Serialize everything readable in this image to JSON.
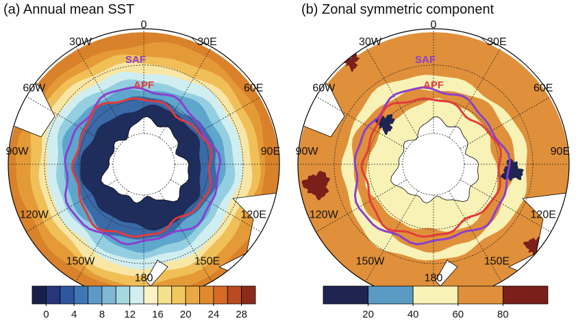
{
  "panels": [
    {
      "title": "(a) Annual mean SST",
      "lon_labels": [
        "0",
        "30E",
        "60E",
        "90E",
        "120E",
        "150E",
        "180",
        "150W",
        "120W",
        "90W",
        "60W",
        "30W"
      ],
      "fronts": [
        {
          "name": "SAF",
          "color": "#8a3fd0"
        },
        {
          "name": "APF",
          "color": "#e23b3b"
        }
      ],
      "colorbar": {
        "lim": [
          -2,
          30
        ],
        "ticks": [
          0,
          4,
          8,
          12,
          16,
          20,
          24,
          28
        ],
        "colors": [
          "#1a1f4a",
          "#26367a",
          "#2f56a0",
          "#3f77b6",
          "#5e9ac8",
          "#7fb8d4",
          "#a6d8e0",
          "#d2eef0",
          "#fbf3c4",
          "#f6e08c",
          "#f1c85d",
          "#e9a841",
          "#e08a2f",
          "#d66b26",
          "#b94a22",
          "#8b2b1c"
        ]
      }
    },
    {
      "title": "(b) Zonal symmetric component",
      "lon_labels": [
        "0",
        "30E",
        "60E",
        "90E",
        "120E",
        "150E",
        "180",
        "150W",
        "120W",
        "90W",
        "60W",
        "30W"
      ],
      "fronts": [
        {
          "name": "SAF",
          "color": "#8a3fd0"
        },
        {
          "name": "APF",
          "color": "#e23b3b"
        }
      ],
      "colorbar": {
        "lim": [
          0,
          100
        ],
        "ticks": [
          20,
          40,
          60,
          80
        ],
        "colors": [
          "#1f2550",
          "#5b9bc3",
          "#f8f2b6",
          "#e08f3a",
          "#7a1f1a"
        ]
      }
    }
  ]
}
